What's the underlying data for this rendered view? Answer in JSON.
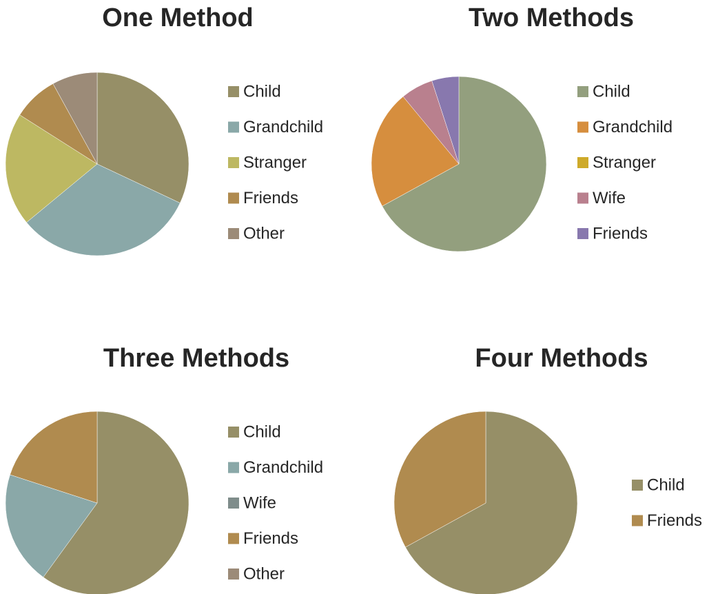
{
  "chart_data": [
    {
      "type": "pie",
      "title": "One Method",
      "categories": [
        "Child",
        "Grandchild",
        "Stranger",
        "Friends",
        "Other"
      ],
      "values": [
        32,
        32,
        20,
        8,
        8
      ],
      "colors": [
        "#968f67",
        "#8aa8a8",
        "#bdb862",
        "#b08b4f",
        "#9c8b78"
      ]
    },
    {
      "type": "pie",
      "title": "Two Methods",
      "categories": [
        "Child",
        "Grandchild",
        "Stranger",
        "Wife",
        "Friends"
      ],
      "values": [
        67,
        22,
        0,
        6,
        5
      ],
      "colors": [
        "#939f7e",
        "#d68e3e",
        "#ceaa2a",
        "#b9808e",
        "#8878ae"
      ]
    },
    {
      "type": "pie",
      "title": "Three Methods",
      "categories": [
        "Child",
        "Grandchild",
        "Wife",
        "Friends",
        "Other"
      ],
      "values": [
        60,
        20,
        0,
        20,
        0
      ],
      "colors": [
        "#968f67",
        "#8aa8a8",
        "#7f8d8b",
        "#b08b4f",
        "#9c8b78"
      ]
    },
    {
      "type": "pie",
      "title": "Four Methods",
      "categories": [
        "Child",
        "Friends"
      ],
      "values": [
        67,
        33
      ],
      "colors": [
        "#968f67",
        "#b08b4f"
      ]
    }
  ]
}
